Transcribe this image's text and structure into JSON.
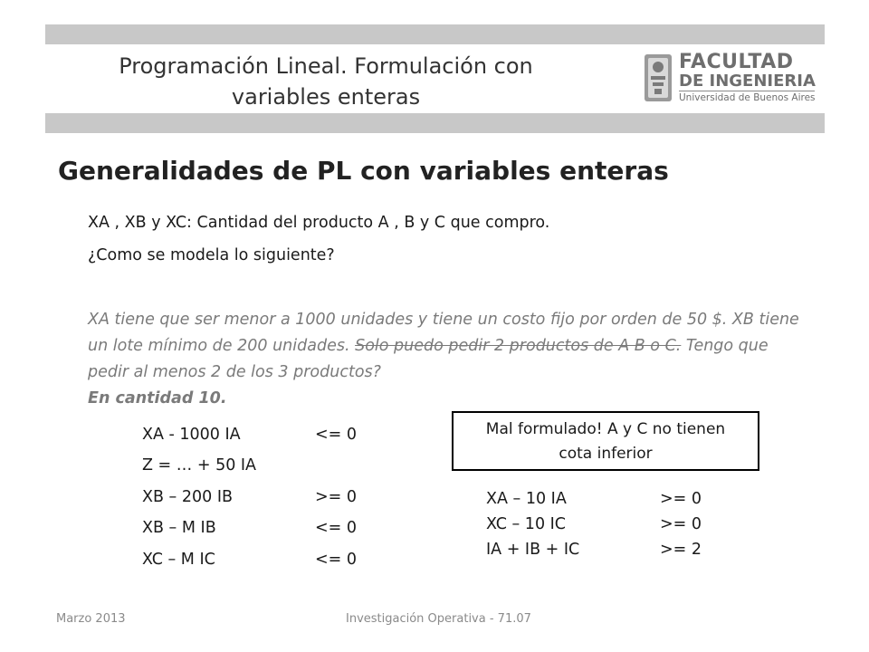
{
  "header": {
    "title_line1": "Programación Lineal. Formulación con",
    "title_line2": "variables enteras",
    "logo": {
      "line1": "FACULTAD",
      "line2": "DE INGENIERIA",
      "line3": "Universidad de Buenos Aires"
    }
  },
  "section_title": "Generalidades de PL con variables enteras",
  "intro": [
    "XA , XB y XC: Cantidad del producto A , B y C que compro.",
    "¿Como se modela lo siguiente?"
  ],
  "statement": {
    "part1": "XA tiene que ser menor a 1000 unidades y tiene un costo fijo por orden de 50 $. XB tiene un lote mínimo de 200 unidades. ",
    "struck": "Solo puedo pedir 2 productos de A B o C.",
    "part2": " Tengo que pedir al menos 2 de los 3 productos?",
    "emphasis": "En cantidad 10."
  },
  "constraints_left": [
    {
      "lhs": "XA  - 1000 IA",
      "rhs": "<= 0"
    },
    {
      "lhs": "Z = … + 50 IA",
      "rhs": ""
    },
    {
      "lhs": "XB – 200 IB",
      "rhs": ">= 0"
    },
    {
      "lhs": "XB – M IB",
      "rhs": "<= 0"
    },
    {
      "lhs": "XC – M IC",
      "rhs": "<= 0"
    }
  ],
  "note_box": {
    "line1": "Mal formulado! A y C no tienen",
    "line2": "cota inferior"
  },
  "constraints_right": [
    {
      "lhs": "XA – 10 IA",
      "rhs": ">= 0"
    },
    {
      "lhs": "XC – 10 IC",
      "rhs": ">= 0"
    },
    {
      "lhs": "IA + IB + IC",
      "rhs": ">= 2"
    }
  ],
  "footer": {
    "date": "Marzo 2013",
    "course": "Investigación Operativa - 71.07"
  }
}
